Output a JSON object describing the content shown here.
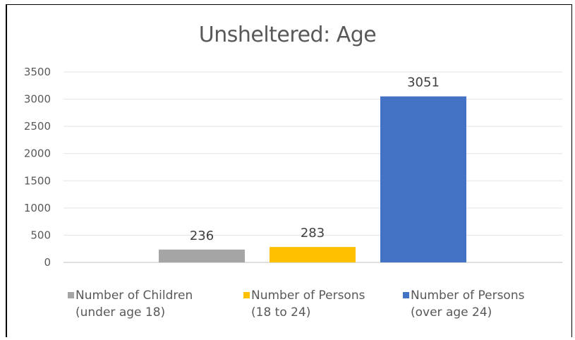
{
  "chart_data": {
    "type": "bar",
    "title": "Unsheltered: Age",
    "xlabel": "",
    "ylabel": "",
    "ylim": [
      0,
      3500
    ],
    "yticks": [
      0,
      500,
      1000,
      1500,
      2000,
      2500,
      3000,
      3500
    ],
    "grid": true,
    "legend_position": "bottom",
    "series": [
      {
        "name": "Number of Children (under age 18)",
        "label_lines": [
          "Number of Children",
          "(under age 18)"
        ],
        "value": 236,
        "color": "#A5A5A5"
      },
      {
        "name": "Number of Persons (18 to 24)",
        "label_lines": [
          "Number of Persons",
          "(18 to 24)"
        ],
        "value": 283,
        "color": "#FFC000"
      },
      {
        "name": "Number of Persons (over age 24)",
        "label_lines": [
          "Number of Persons",
          "(over age 24)"
        ],
        "value": 3051,
        "color": "#4472C4"
      }
    ]
  }
}
